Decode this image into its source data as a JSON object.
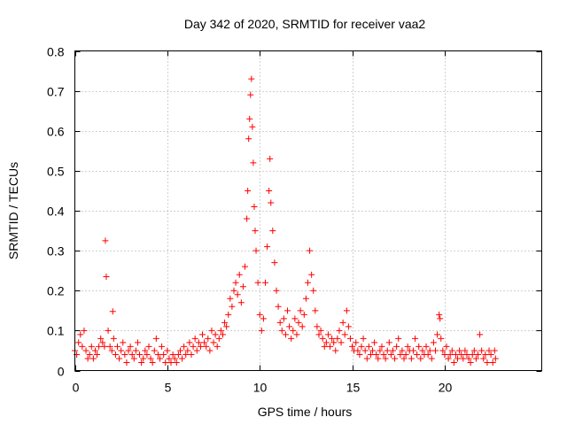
{
  "chart_data": {
    "type": "scatter",
    "title": "Day 342 of 2020, SRMTID for receiver vaa2",
    "xlabel": "GPS time / hours",
    "ylabel": "SRMTID / TECUs",
    "xlim": [
      0,
      25.25
    ],
    "ylim": [
      0,
      0.8
    ],
    "x_ticks": [
      0,
      5,
      10,
      15,
      20
    ],
    "x_tick_labels": [
      "0",
      "5",
      "10",
      "15",
      "20"
    ],
    "y_ticks": [
      0,
      0.1,
      0.2,
      0.3,
      0.4,
      0.5,
      0.6,
      0.7,
      0.8
    ],
    "y_tick_labels": [
      "0",
      "0.1",
      "0.2",
      "0.3",
      "0.4",
      "0.5",
      "0.6",
      "0.7",
      "0.8"
    ],
    "grid": true,
    "marker": "+",
    "marker_color": "#ff0000",
    "series": [
      {
        "name": "vaa2",
        "points": [
          [
            0.0,
            0.05
          ],
          [
            0.1,
            0.04
          ],
          [
            0.2,
            0.07
          ],
          [
            0.3,
            0.09
          ],
          [
            0.4,
            0.06
          ],
          [
            0.5,
            0.1
          ],
          [
            0.6,
            0.05
          ],
          [
            0.7,
            0.03
          ],
          [
            0.8,
            0.04
          ],
          [
            0.9,
            0.06
          ],
          [
            1.0,
            0.03
          ],
          [
            1.1,
            0.05
          ],
          [
            1.2,
            0.04
          ],
          [
            1.3,
            0.06
          ],
          [
            1.4,
            0.08
          ],
          [
            1.5,
            0.07
          ],
          [
            1.6,
            0.06
          ],
          [
            1.65,
            0.325
          ],
          [
            1.7,
            0.235
          ],
          [
            1.8,
            0.1
          ],
          [
            1.9,
            0.06
          ],
          [
            2.0,
            0.05
          ],
          [
            2.05,
            0.148
          ],
          [
            2.1,
            0.08
          ],
          [
            2.2,
            0.04
          ],
          [
            2.3,
            0.06
          ],
          [
            2.4,
            0.03
          ],
          [
            2.5,
            0.05
          ],
          [
            2.6,
            0.07
          ],
          [
            2.7,
            0.04
          ],
          [
            2.8,
            0.02
          ],
          [
            2.9,
            0.05
          ],
          [
            3.0,
            0.06
          ],
          [
            3.1,
            0.04
          ],
          [
            3.2,
            0.03
          ],
          [
            3.3,
            0.05
          ],
          [
            3.4,
            0.07
          ],
          [
            3.5,
            0.04
          ],
          [
            3.6,
            0.02
          ],
          [
            3.7,
            0.03
          ],
          [
            3.8,
            0.05
          ],
          [
            3.9,
            0.04
          ],
          [
            4.0,
            0.06
          ],
          [
            4.1,
            0.03
          ],
          [
            4.2,
            0.02
          ],
          [
            4.3,
            0.05
          ],
          [
            4.4,
            0.08
          ],
          [
            4.5,
            0.04
          ],
          [
            4.6,
            0.03
          ],
          [
            4.7,
            0.06
          ],
          [
            4.8,
            0.04
          ],
          [
            4.9,
            0.02
          ],
          [
            5.0,
            0.05
          ],
          [
            5.1,
            0.03
          ],
          [
            5.2,
            0.02
          ],
          [
            5.3,
            0.04
          ],
          [
            5.4,
            0.03
          ],
          [
            5.5,
            0.02
          ],
          [
            5.6,
            0.04
          ],
          [
            5.7,
            0.05
          ],
          [
            5.8,
            0.03
          ],
          [
            5.9,
            0.06
          ],
          [
            6.0,
            0.04
          ],
          [
            6.1,
            0.05
          ],
          [
            6.2,
            0.07
          ],
          [
            6.3,
            0.04
          ],
          [
            6.4,
            0.06
          ],
          [
            6.5,
            0.08
          ],
          [
            6.6,
            0.05
          ],
          [
            6.7,
            0.07
          ],
          [
            6.8,
            0.06
          ],
          [
            6.9,
            0.09
          ],
          [
            7.0,
            0.07
          ],
          [
            7.1,
            0.06
          ],
          [
            7.2,
            0.08
          ],
          [
            7.3,
            0.05
          ],
          [
            7.4,
            0.1
          ],
          [
            7.5,
            0.07
          ],
          [
            7.6,
            0.09
          ],
          [
            7.7,
            0.06
          ],
          [
            7.8,
            0.08
          ],
          [
            7.9,
            0.1
          ],
          [
            8.0,
            0.09
          ],
          [
            8.1,
            0.12
          ],
          [
            8.2,
            0.11
          ],
          [
            8.3,
            0.14
          ],
          [
            8.4,
            0.18
          ],
          [
            8.5,
            0.16
          ],
          [
            8.6,
            0.2
          ],
          [
            8.7,
            0.22
          ],
          [
            8.8,
            0.19
          ],
          [
            8.9,
            0.24
          ],
          [
            9.0,
            0.17
          ],
          [
            9.1,
            0.21
          ],
          [
            9.2,
            0.26
          ],
          [
            9.3,
            0.38
          ],
          [
            9.35,
            0.45
          ],
          [
            9.4,
            0.58
          ],
          [
            9.45,
            0.63
          ],
          [
            9.5,
            0.69
          ],
          [
            9.55,
            0.73
          ],
          [
            9.6,
            0.61
          ],
          [
            9.65,
            0.52
          ],
          [
            9.7,
            0.41
          ],
          [
            9.75,
            0.35
          ],
          [
            9.8,
            0.3
          ],
          [
            9.9,
            0.22
          ],
          [
            10.0,
            0.14
          ],
          [
            10.1,
            0.1
          ],
          [
            10.2,
            0.13
          ],
          [
            10.3,
            0.22
          ],
          [
            10.4,
            0.31
          ],
          [
            10.5,
            0.45
          ],
          [
            10.55,
            0.53
          ],
          [
            10.6,
            0.42
          ],
          [
            10.7,
            0.35
          ],
          [
            10.8,
            0.27
          ],
          [
            10.9,
            0.2
          ],
          [
            11.0,
            0.16
          ],
          [
            11.1,
            0.12
          ],
          [
            11.2,
            0.1
          ],
          [
            11.3,
            0.13
          ],
          [
            11.4,
            0.09
          ],
          [
            11.5,
            0.15
          ],
          [
            11.6,
            0.11
          ],
          [
            11.7,
            0.08
          ],
          [
            11.8,
            0.1
          ],
          [
            11.9,
            0.13
          ],
          [
            12.0,
            0.09
          ],
          [
            12.1,
            0.12
          ],
          [
            12.2,
            0.15
          ],
          [
            12.3,
            0.11
          ],
          [
            12.4,
            0.14
          ],
          [
            12.5,
            0.18
          ],
          [
            12.6,
            0.22
          ],
          [
            12.7,
            0.3
          ],
          [
            12.8,
            0.24
          ],
          [
            12.9,
            0.2
          ],
          [
            13.0,
            0.15
          ],
          [
            13.1,
            0.11
          ],
          [
            13.2,
            0.09
          ],
          [
            13.3,
            0.1
          ],
          [
            13.4,
            0.08
          ],
          [
            13.5,
            0.06
          ],
          [
            13.6,
            0.07
          ],
          [
            13.7,
            0.09
          ],
          [
            13.8,
            0.06
          ],
          [
            13.9,
            0.08
          ],
          [
            14.0,
            0.07
          ],
          [
            14.1,
            0.05
          ],
          [
            14.2,
            0.08
          ],
          [
            14.3,
            0.1
          ],
          [
            14.4,
            0.07
          ],
          [
            14.5,
            0.12
          ],
          [
            14.6,
            0.09
          ],
          [
            14.7,
            0.15
          ],
          [
            14.8,
            0.11
          ],
          [
            14.9,
            0.08
          ],
          [
            15.0,
            0.06
          ],
          [
            15.1,
            0.05
          ],
          [
            15.2,
            0.07
          ],
          [
            15.3,
            0.05
          ],
          [
            15.4,
            0.04
          ],
          [
            15.5,
            0.06
          ],
          [
            15.6,
            0.08
          ],
          [
            15.7,
            0.05
          ],
          [
            15.8,
            0.03
          ],
          [
            15.9,
            0.06
          ],
          [
            16.0,
            0.04
          ],
          [
            16.1,
            0.05
          ],
          [
            16.2,
            0.07
          ],
          [
            16.3,
            0.04
          ],
          [
            16.4,
            0.03
          ],
          [
            16.5,
            0.05
          ],
          [
            16.6,
            0.06
          ],
          [
            16.7,
            0.04
          ],
          [
            16.8,
            0.03
          ],
          [
            16.9,
            0.05
          ],
          [
            17.0,
            0.07
          ],
          [
            17.1,
            0.04
          ],
          [
            17.2,
            0.05
          ],
          [
            17.3,
            0.03
          ],
          [
            17.4,
            0.06
          ],
          [
            17.5,
            0.08
          ],
          [
            17.6,
            0.04
          ],
          [
            17.7,
            0.05
          ],
          [
            17.8,
            0.03
          ],
          [
            17.9,
            0.04
          ],
          [
            18.0,
            0.06
          ],
          [
            18.1,
            0.05
          ],
          [
            18.2,
            0.03
          ],
          [
            18.3,
            0.05
          ],
          [
            18.4,
            0.08
          ],
          [
            18.5,
            0.04
          ],
          [
            18.6,
            0.06
          ],
          [
            18.7,
            0.03
          ],
          [
            18.8,
            0.05
          ],
          [
            18.9,
            0.04
          ],
          [
            19.0,
            0.06
          ],
          [
            19.1,
            0.04
          ],
          [
            19.2,
            0.05
          ],
          [
            19.3,
            0.03
          ],
          [
            19.4,
            0.07
          ],
          [
            19.5,
            0.05
          ],
          [
            19.6,
            0.09
          ],
          [
            19.7,
            0.14
          ],
          [
            19.75,
            0.13
          ],
          [
            19.8,
            0.08
          ],
          [
            19.9,
            0.05
          ],
          [
            20.0,
            0.04
          ],
          [
            20.1,
            0.06
          ],
          [
            20.2,
            0.03
          ],
          [
            20.3,
            0.04
          ],
          [
            20.4,
            0.05
          ],
          [
            20.5,
            0.02
          ],
          [
            20.6,
            0.04
          ],
          [
            20.7,
            0.03
          ],
          [
            20.8,
            0.05
          ],
          [
            20.9,
            0.04
          ],
          [
            21.0,
            0.03
          ],
          [
            21.1,
            0.05
          ],
          [
            21.2,
            0.04
          ],
          [
            21.3,
            0.03
          ],
          [
            21.4,
            0.02
          ],
          [
            21.5,
            0.04
          ],
          [
            21.6,
            0.05
          ],
          [
            21.7,
            0.03
          ],
          [
            21.8,
            0.04
          ],
          [
            21.9,
            0.09
          ],
          [
            22.0,
            0.05
          ],
          [
            22.1,
            0.03
          ],
          [
            22.2,
            0.04
          ],
          [
            22.3,
            0.02
          ],
          [
            22.4,
            0.05
          ],
          [
            22.5,
            0.04
          ],
          [
            22.6,
            0.02
          ],
          [
            22.7,
            0.05
          ],
          [
            22.75,
            0.03
          ]
        ]
      }
    ]
  }
}
